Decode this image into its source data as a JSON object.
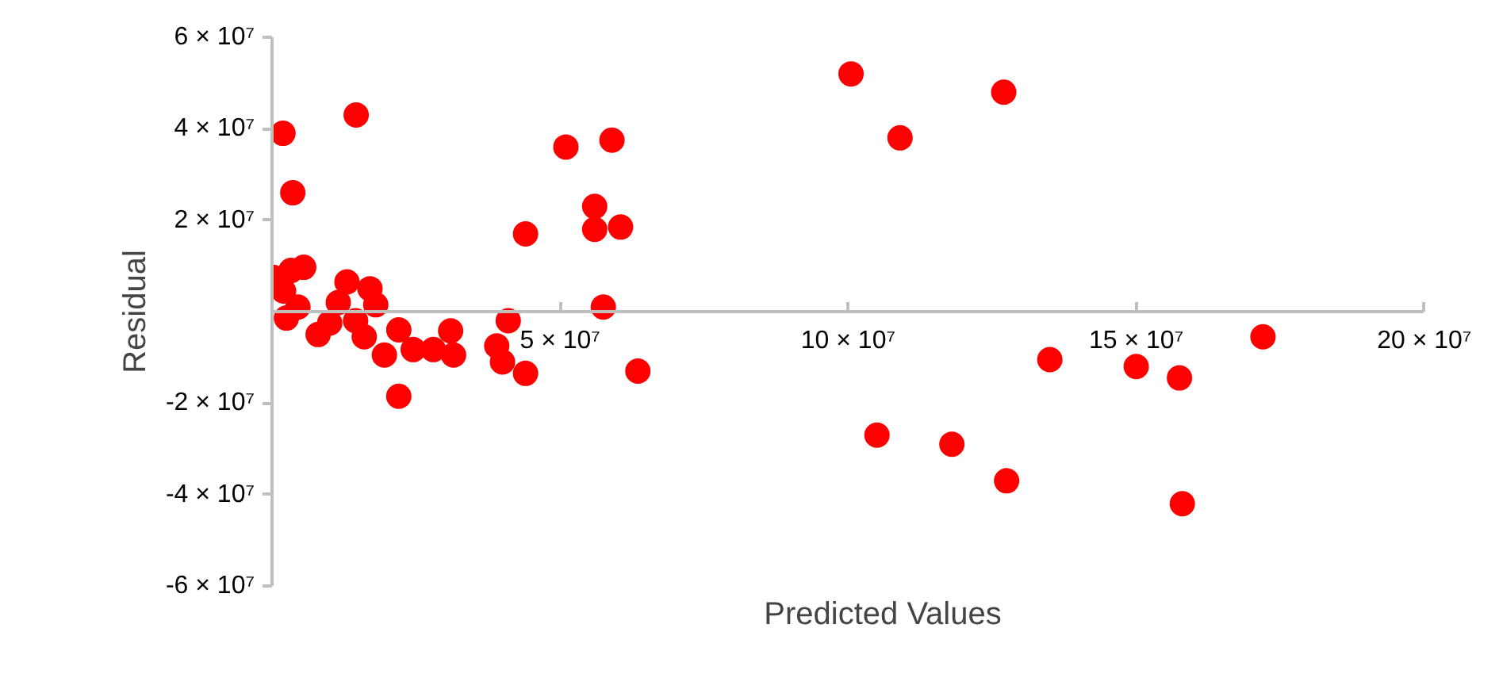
{
  "chart_data": {
    "type": "scatter",
    "xlabel": "Predicted Values",
    "ylabel": "Residual",
    "marker": "circle",
    "grid": false,
    "xlim": [
      0,
      200000000
    ],
    "ylim": [
      -60000000,
      60000000
    ],
    "xticks": [
      {
        "value": 50000000,
        "label": "5 × 10⁷"
      },
      {
        "value": 100000000,
        "label": "10 × 10⁷"
      },
      {
        "value": 150000000,
        "label": "15 × 10⁷"
      },
      {
        "value": 200000000,
        "label": "20 × 10⁷"
      }
    ],
    "yticks": [
      {
        "value": -60000000,
        "label": "-6 × 10⁷"
      },
      {
        "value": -40000000,
        "label": "-4 × 10⁷"
      },
      {
        "value": -20000000,
        "label": "-2 × 10⁷"
      },
      {
        "value": 20000000,
        "label": "2 × 10⁷"
      },
      {
        "value": 40000000,
        "label": "4 × 10⁷"
      },
      {
        "value": 60000000,
        "label": "6 × 10⁷"
      }
    ],
    "series": [
      {
        "color": "#ff0000",
        "x": [
          1900000,
          3600000,
          14600000,
          44000000,
          51000000,
          59000000,
          56000000,
          56000000,
          60500000,
          57500000,
          41000000,
          39000000,
          40000000,
          44000000,
          63500000,
          100500000,
          109000000,
          127000000,
          105000000,
          118000000,
          127500000,
          135000000,
          150000000,
          157500000,
          158000000,
          172000000,
          22000000,
          200000,
          3300000,
          5500000,
          13000000,
          17000000,
          18000000,
          22000000,
          2000000,
          2500000,
          8000000,
          14500000,
          16000000,
          19500000,
          24500000,
          28000000,
          31000000,
          31500000,
          4500000,
          10000000,
          11500000
        ],
        "values": [
          39000000,
          26000000,
          43000000,
          17000000,
          36000000,
          37500000,
          23000000,
          18000000,
          18500000,
          1000000,
          -2000000,
          -7500000,
          -11000000,
          -13500000,
          -13000000,
          52000000,
          38000000,
          48000000,
          -27000000,
          -29000000,
          -37000000,
          -10500000,
          -12000000,
          -14500000,
          -42000000,
          -5500000,
          -18500000,
          7500000,
          9000000,
          9700000,
          6500000,
          5000000,
          1500000,
          -4000000,
          4500000,
          -1400000,
          -5000000,
          -2000000,
          -5500000,
          -9500000,
          -8300000,
          -8300000,
          -4200000,
          -9500000,
          1000000,
          -2500000,
          2000000
        ]
      }
    ]
  }
}
